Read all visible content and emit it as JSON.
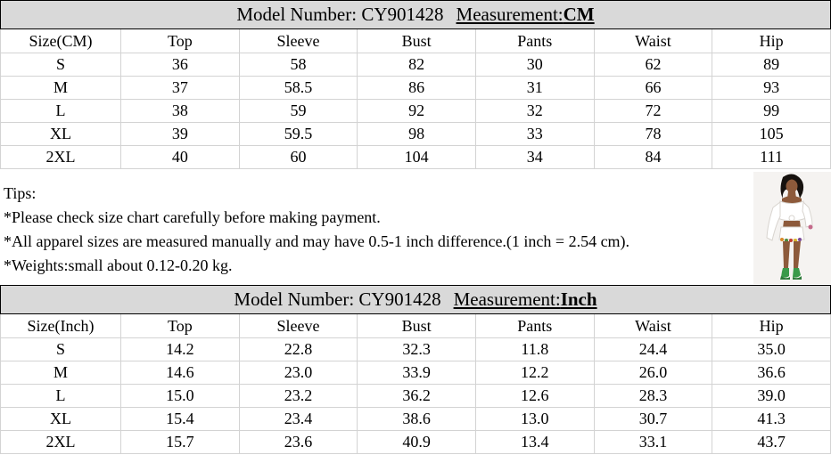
{
  "colors": {
    "band_bg": "#d9d9d9",
    "grid_line": "#d3d3d3",
    "outer_border": "#000000"
  },
  "table_cm": {
    "title_prefix": "Model Number: CY901428",
    "measurement_label": "Measurement:",
    "measurement_value": "CM",
    "columns": [
      "Size(CM)",
      "Top",
      "Sleeve",
      "Bust",
      "Pants",
      "Waist",
      "Hip"
    ],
    "rows": [
      [
        "S",
        "36",
        "58",
        "82",
        "30",
        "62",
        "89"
      ],
      [
        "M",
        "37",
        "58.5",
        "86",
        "31",
        "66",
        "93"
      ],
      [
        "L",
        "38",
        "59",
        "92",
        "32",
        "72",
        "99"
      ],
      [
        "XL",
        "39",
        "59.5",
        "98",
        "33",
        "78",
        "105"
      ],
      [
        "2XL",
        "40",
        "60",
        "104",
        "34",
        "84",
        "111"
      ]
    ]
  },
  "tips": {
    "heading": "Tips:",
    "lines": [
      "*Please check size chart carefully before making payment.",
      "*All apparel sizes are measured manually and may have 0.5-1 inch difference.(1 inch = 2.54 cm).",
      "*Weights:small about 0.12-0.20 kg."
    ]
  },
  "table_inch": {
    "title_prefix": "Model Number: CY901428",
    "measurement_label": "Measurement:",
    "measurement_value": "Inch",
    "columns": [
      "Size(Inch)",
      "Top",
      "Sleeve",
      "Bust",
      "Pants",
      "Waist",
      "Hip"
    ],
    "rows": [
      [
        "S",
        "14.2",
        "22.8",
        "32.3",
        "11.8",
        "24.4",
        "35.0"
      ],
      [
        "M",
        "14.6",
        "23.0",
        "33.9",
        "12.2",
        "26.0",
        "36.6"
      ],
      [
        "L",
        "15.0",
        "23.2",
        "36.2",
        "12.6",
        "28.3",
        "39.0"
      ],
      [
        "XL",
        "15.4",
        "23.4",
        "38.6",
        "13.0",
        "30.7",
        "41.3"
      ],
      [
        "2XL",
        "15.7",
        "23.6",
        "40.9",
        "13.4",
        "33.1",
        "43.7"
      ]
    ]
  },
  "model_photo": {
    "description": "model wearing white off-shoulder tie-front crop top and white shorts with colorful trim, green heels"
  }
}
